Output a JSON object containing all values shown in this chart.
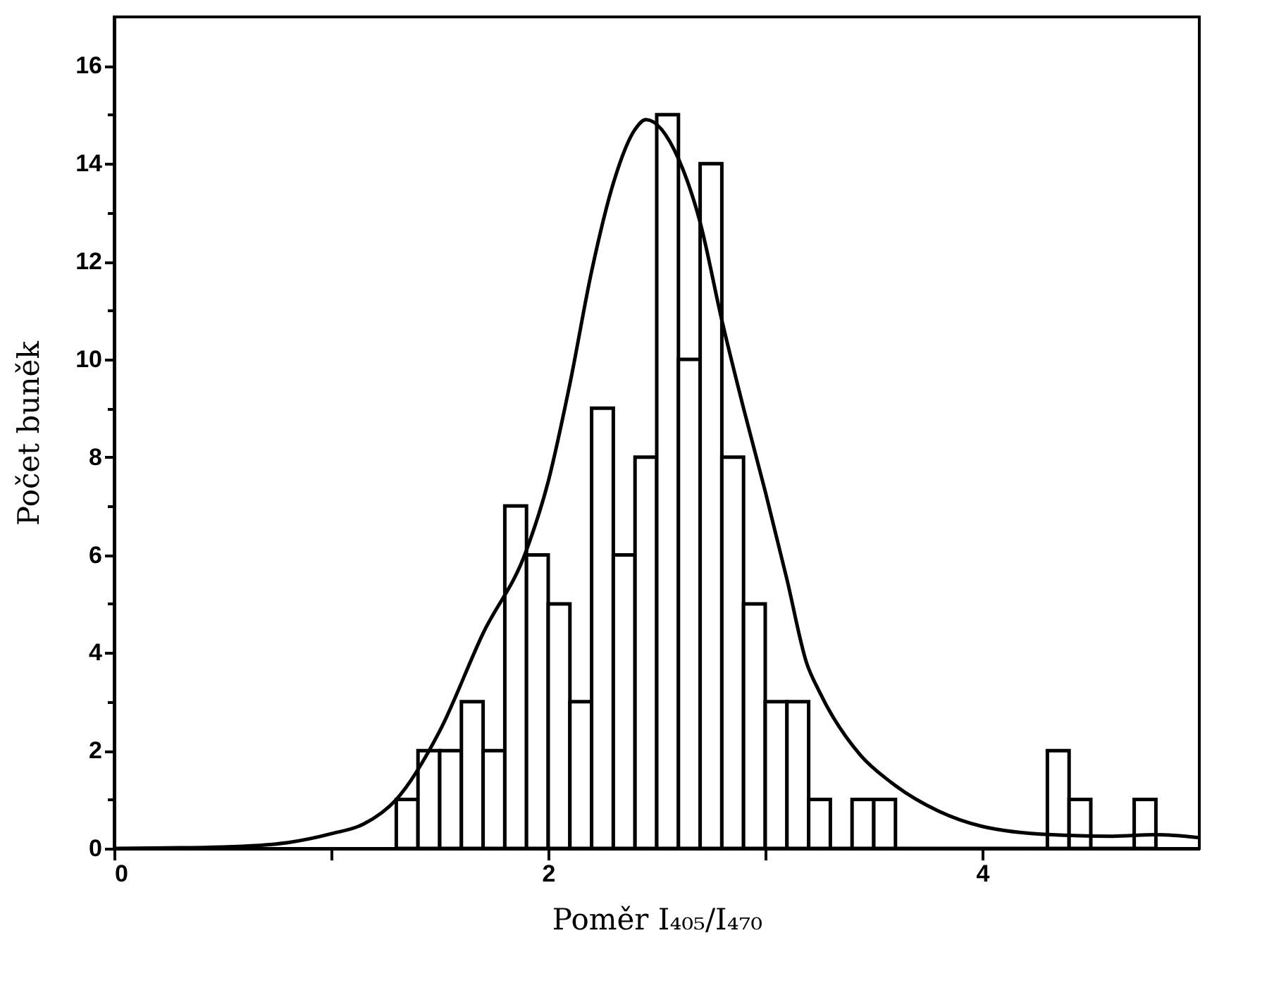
{
  "chart_data": {
    "type": "histogram",
    "xlabel": "Poměr I₄₀₅/I₄₇₀",
    "ylabel": "Počet buněk",
    "bins": [
      1.3,
      1.4,
      1.5,
      1.6,
      1.7,
      1.8,
      1.9,
      2.0,
      2.1,
      2.2,
      2.3,
      2.4,
      2.5,
      2.6,
      2.7,
      2.8,
      2.9,
      3.0,
      3.1,
      3.2,
      3.3,
      3.4,
      3.5,
      3.6,
      3.7,
      3.8,
      3.9,
      4.0,
      4.1,
      4.2,
      4.3,
      4.4,
      4.5,
      4.6,
      4.7,
      4.8
    ],
    "values": [
      1,
      2,
      2,
      3,
      2,
      7,
      6,
      5,
      3,
      9,
      6,
      8,
      15,
      10,
      14,
      8,
      5,
      3,
      3,
      1,
      0,
      1,
      1,
      0,
      0,
      0,
      0,
      0,
      0,
      0,
      2,
      1,
      0,
      0,
      1
    ],
    "color": "#000000",
    "series": [
      {
        "type": "line",
        "color": "#000000",
        "x": [
          0,
          0.5,
          0.8,
          1.0,
          1.15,
          1.3,
          1.5,
          1.7,
          1.9,
          2.0,
          2.1,
          2.2,
          2.3,
          2.4,
          2.45,
          2.6,
          2.7,
          2.8,
          2.9,
          3.0,
          3.1,
          3.19,
          3.25,
          3.44,
          3.58,
          3.8,
          4.0,
          4.32,
          4.6,
          4.8,
          5.0
        ],
        "values": [
          0,
          0.03,
          0.12,
          0.3,
          0.5,
          1.0,
          2.4,
          4.4,
          6.1,
          7.5,
          9.5,
          11.8,
          13.6,
          14.7,
          14.9,
          14.1,
          12.8,
          10.8,
          9.0,
          7.3,
          5.5,
          3.8,
          3.2,
          1.9,
          1.35,
          0.76,
          0.45,
          0.28,
          0.25,
          0.28,
          0.22
        ]
      }
    ],
    "xlim": [
      0,
      5
    ],
    "xticks": [
      0,
      2,
      4,
      {
        "value": 1,
        "label": null
      },
      {
        "value": 3,
        "label": null
      }
    ],
    "ylim": [
      0,
      17
    ],
    "yticks": [
      0,
      {
        "value": 1,
        "label": null
      },
      2,
      {
        "value": 3,
        "label": null
      },
      4,
      {
        "value": 5,
        "label": null
      },
      6,
      {
        "value": 7,
        "label": null
      },
      8,
      {
        "value": 9,
        "label": null
      },
      10,
      {
        "value": 11,
        "label": null
      },
      12,
      {
        "value": 13,
        "label": null
      },
      14,
      {
        "value": 15,
        "label": null
      },
      16
    ],
    "grid": false
  }
}
